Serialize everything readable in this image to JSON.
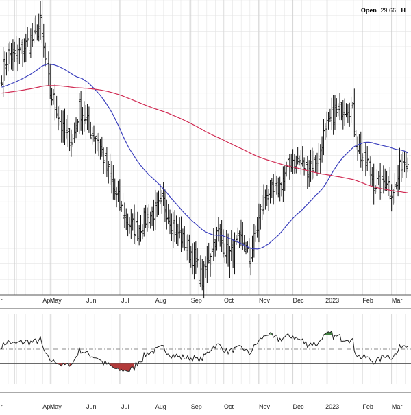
{
  "header": {
    "open_label": "Open",
    "open_value": "29.66",
    "trailing_label": "H"
  },
  "chart_data": [
    {
      "type": "ohlc",
      "panel": "price",
      "grid": true,
      "months": [
        "Apr",
        "May",
        "Jun",
        "Jul",
        "Aug",
        "Sep",
        "Oct",
        "Nov",
        "Dec",
        "2023",
        "Feb",
        "Mar"
      ],
      "month_day_index": [
        8,
        30,
        52,
        73,
        95,
        117,
        137,
        159,
        180,
        201,
        223,
        241
      ],
      "partial_first_label": "r",
      "day_count": 252,
      "ylim": [
        20,
        58
      ],
      "price_anchors": [
        [
          0,
          48.5
        ],
        [
          4,
          51
        ],
        [
          8,
          50.5
        ],
        [
          14,
          52
        ],
        [
          20,
          53
        ],
        [
          24,
          55
        ],
        [
          26,
          51.5
        ],
        [
          30,
          46
        ],
        [
          34,
          44
        ],
        [
          38,
          41
        ],
        [
          44,
          40
        ],
        [
          48,
          44
        ],
        [
          52,
          42.5
        ],
        [
          56,
          41
        ],
        [
          60,
          40
        ],
        [
          64,
          37
        ],
        [
          70,
          33
        ],
        [
          76,
          30
        ],
        [
          80,
          29
        ],
        [
          84,
          28.5
        ],
        [
          90,
          30
        ],
        [
          96,
          31
        ],
        [
          100,
          32
        ],
        [
          106,
          29
        ],
        [
          112,
          27
        ],
        [
          117,
          25.5
        ],
        [
          120,
          24
        ],
        [
          124,
          22
        ],
        [
          128,
          25
        ],
        [
          131,
          27
        ],
        [
          134,
          28
        ],
        [
          137,
          26.5
        ],
        [
          140,
          25
        ],
        [
          144,
          26
        ],
        [
          148,
          27
        ],
        [
          150,
          26.5
        ],
        [
          153,
          24.5
        ],
        [
          156,
          27
        ],
        [
          160,
          30.5
        ],
        [
          164,
          33.5
        ],
        [
          168,
          33
        ],
        [
          172,
          34
        ],
        [
          176,
          36
        ],
        [
          180,
          37.5
        ],
        [
          184,
          37
        ],
        [
          188,
          36.5
        ],
        [
          192,
          37
        ],
        [
          196,
          37.5
        ],
        [
          198,
          40
        ],
        [
          202,
          42
        ],
        [
          206,
          43.5
        ],
        [
          210,
          44
        ],
        [
          214,
          44.5
        ],
        [
          217,
          43.5
        ],
        [
          219,
          40
        ],
        [
          222,
          38
        ],
        [
          226,
          37
        ],
        [
          230,
          34.5
        ],
        [
          234,
          34
        ],
        [
          238,
          35
        ],
        [
          240,
          33.5
        ],
        [
          244,
          34
        ],
        [
          247,
          37
        ],
        [
          251,
          38
        ]
      ],
      "overlays": [
        {
          "name": "",
          "color": "#3a3fbd",
          "period": 50
        },
        {
          "name": "",
          "color": "#d02a52",
          "period": 200
        }
      ]
    },
    {
      "type": "line",
      "panel": "oscillator",
      "ylim": [
        0,
        100
      ],
      "reference_lines": [
        70,
        50,
        30
      ],
      "overbought": 70,
      "oversold": 30,
      "overbought_fill": "#3f7f3f",
      "oversold_fill": "#b23a3a",
      "line_color": "#222222"
    }
  ],
  "colors": {
    "bars": "#111111",
    "grid": "#e4e4e4",
    "frame": "#555555",
    "axis_text": "#222222"
  }
}
